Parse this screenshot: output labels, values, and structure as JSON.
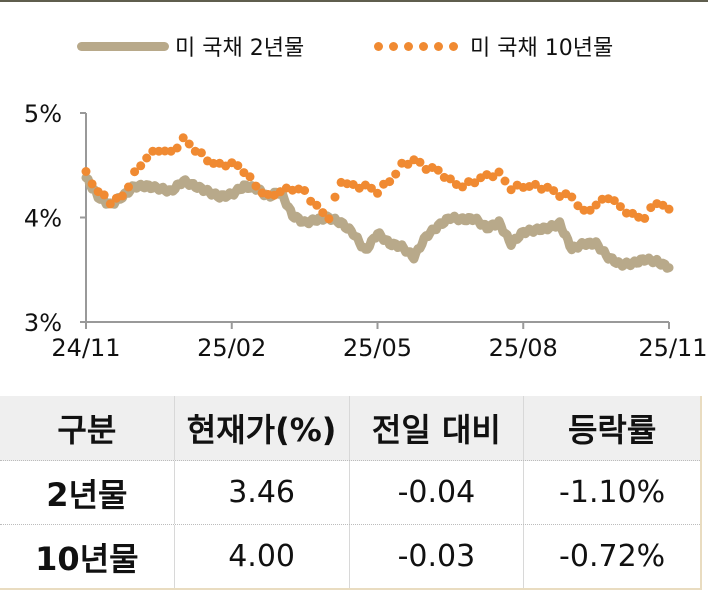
{
  "legend": {
    "series_2y": "미 국채 2년물",
    "series_10y": "미 국채 10년물"
  },
  "colors": {
    "series_2y": "#b8a98a",
    "series_10y": "#f08a32",
    "axis": "#999999",
    "header_bg": "#efefef"
  },
  "chart_data": {
    "type": "line",
    "title": "",
    "xlabel": "",
    "ylabel": "",
    "ylim": [
      3,
      5
    ],
    "y_ticks": [
      "3%",
      "4%",
      "5%"
    ],
    "x_ticks": [
      "24/11",
      "25/02",
      "25/05",
      "25/08",
      "25/11"
    ],
    "grid": false,
    "legend_position": "top",
    "x": [
      0,
      0.25,
      0.5,
      0.75,
      1,
      1.25,
      1.5,
      1.75,
      2,
      2.25,
      2.5,
      2.75,
      3,
      3.25,
      3.5,
      3.75,
      4,
      4.25,
      4.5,
      4.75,
      5,
      5.25,
      5.5,
      5.75,
      6,
      6.25,
      6.5,
      6.75,
      7,
      7.25,
      7.5,
      7.75,
      8,
      8.25,
      8.5,
      8.75,
      9,
      9.25,
      9.5,
      9.75,
      10,
      10.25,
      10.5,
      10.75,
      11,
      11.25,
      11.5,
      11.75,
      12
    ],
    "series": [
      {
        "name": "미 국채 2년물",
        "style": "solid-thick",
        "values": [
          4.38,
          4.2,
          4.12,
          4.2,
          4.3,
          4.3,
          4.28,
          4.25,
          4.35,
          4.3,
          4.25,
          4.2,
          4.22,
          4.3,
          4.28,
          4.2,
          4.25,
          4.02,
          3.95,
          3.98,
          4.0,
          3.95,
          3.85,
          3.68,
          3.85,
          3.75,
          3.72,
          3.62,
          3.82,
          3.92,
          4.0,
          3.98,
          3.99,
          3.9,
          3.95,
          3.75,
          3.86,
          3.88,
          3.9,
          3.94,
          3.7,
          3.75,
          3.75,
          3.62,
          3.55,
          3.56,
          3.6,
          3.58,
          3.52
        ]
      },
      {
        "name": "미 국채 10년물",
        "style": "dotted",
        "values": [
          4.42,
          4.25,
          4.15,
          4.2,
          4.42,
          4.58,
          4.65,
          4.62,
          4.75,
          4.65,
          4.55,
          4.5,
          4.52,
          4.45,
          4.3,
          4.2,
          4.25,
          4.28,
          4.25,
          4.1,
          4.0,
          4.35,
          4.3,
          4.3,
          4.25,
          4.35,
          4.5,
          4.55,
          4.48,
          4.45,
          4.35,
          4.3,
          4.35,
          4.4,
          4.42,
          4.28,
          4.3,
          4.3,
          4.28,
          4.22,
          4.2,
          4.05,
          4.12,
          4.2,
          4.1,
          4.02,
          4.0,
          4.15,
          4.08
        ]
      }
    ]
  },
  "table": {
    "headers": [
      "구분",
      "현재가(%)",
      "전일 대비",
      "등락률"
    ],
    "rows": [
      [
        "2년물",
        "3.46",
        "-0.04",
        "-1.10%"
      ],
      [
        "10년물",
        "4.00",
        "-0.03",
        "-0.72%"
      ]
    ]
  }
}
